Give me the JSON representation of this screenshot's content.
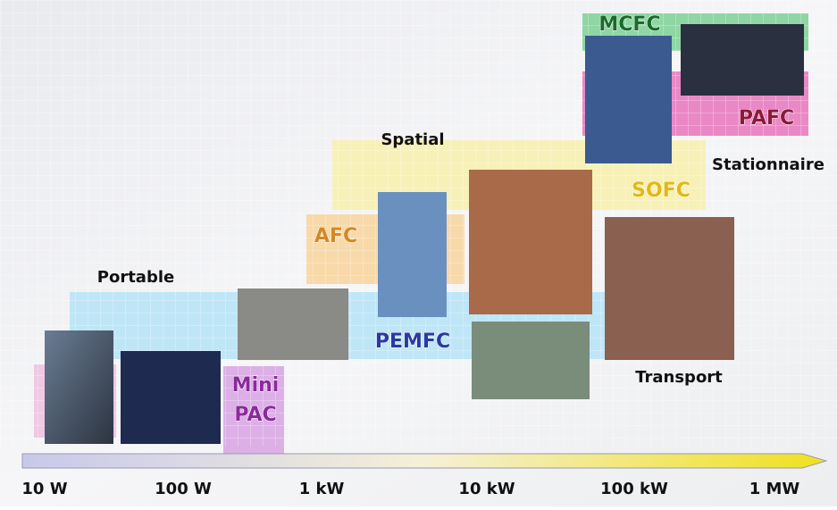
{
  "applications": {
    "portable": "Portable",
    "spatial": "Spatial",
    "stationnaire": "Stationnaire",
    "transport": "Transport"
  },
  "technologies": {
    "mcfc": "MCFC",
    "pafc": "PAFC",
    "sofc": "SOFC",
    "afc": "AFC",
    "pemfc": "PEMFC",
    "mini_pac": [
      "Mini",
      "PAC"
    ]
  },
  "power_axis": [
    "10 W",
    "100 W",
    "1 kW",
    "10 kW",
    "100 kW",
    "1 MW"
  ]
}
